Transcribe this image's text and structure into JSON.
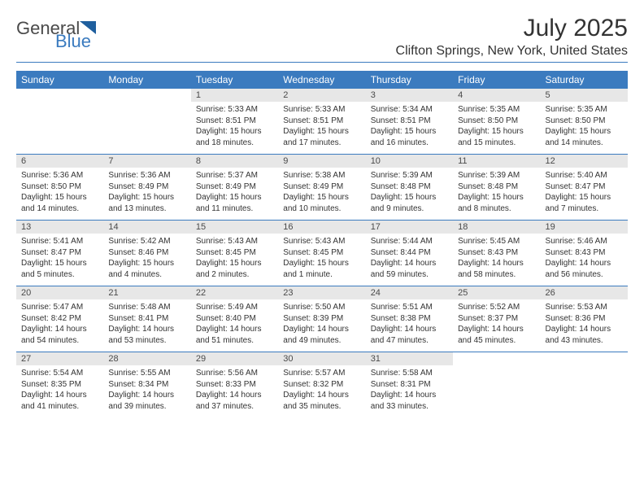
{
  "logo": {
    "general": "General",
    "blue": "Blue"
  },
  "title": "July 2025",
  "location": "Clifton Springs, New York, United States",
  "colors": {
    "header_bg": "#3b7bbf",
    "header_text": "#ffffff",
    "daynum_bg": "#e7e7e7",
    "text": "#333333",
    "rule": "#3b7bbf"
  },
  "days_of_week": [
    "Sunday",
    "Monday",
    "Tuesday",
    "Wednesday",
    "Thursday",
    "Friday",
    "Saturday"
  ],
  "weeks": [
    [
      null,
      null,
      {
        "n": "1",
        "sr": "5:33 AM",
        "ss": "8:51 PM",
        "dl": "15 hours and 18 minutes."
      },
      {
        "n": "2",
        "sr": "5:33 AM",
        "ss": "8:51 PM",
        "dl": "15 hours and 17 minutes."
      },
      {
        "n": "3",
        "sr": "5:34 AM",
        "ss": "8:51 PM",
        "dl": "15 hours and 16 minutes."
      },
      {
        "n": "4",
        "sr": "5:35 AM",
        "ss": "8:50 PM",
        "dl": "15 hours and 15 minutes."
      },
      {
        "n": "5",
        "sr": "5:35 AM",
        "ss": "8:50 PM",
        "dl": "15 hours and 14 minutes."
      }
    ],
    [
      {
        "n": "6",
        "sr": "5:36 AM",
        "ss": "8:50 PM",
        "dl": "15 hours and 14 minutes."
      },
      {
        "n": "7",
        "sr": "5:36 AM",
        "ss": "8:49 PM",
        "dl": "15 hours and 13 minutes."
      },
      {
        "n": "8",
        "sr": "5:37 AM",
        "ss": "8:49 PM",
        "dl": "15 hours and 11 minutes."
      },
      {
        "n": "9",
        "sr": "5:38 AM",
        "ss": "8:49 PM",
        "dl": "15 hours and 10 minutes."
      },
      {
        "n": "10",
        "sr": "5:39 AM",
        "ss": "8:48 PM",
        "dl": "15 hours and 9 minutes."
      },
      {
        "n": "11",
        "sr": "5:39 AM",
        "ss": "8:48 PM",
        "dl": "15 hours and 8 minutes."
      },
      {
        "n": "12",
        "sr": "5:40 AM",
        "ss": "8:47 PM",
        "dl": "15 hours and 7 minutes."
      }
    ],
    [
      {
        "n": "13",
        "sr": "5:41 AM",
        "ss": "8:47 PM",
        "dl": "15 hours and 5 minutes."
      },
      {
        "n": "14",
        "sr": "5:42 AM",
        "ss": "8:46 PM",
        "dl": "15 hours and 4 minutes."
      },
      {
        "n": "15",
        "sr": "5:43 AM",
        "ss": "8:45 PM",
        "dl": "15 hours and 2 minutes."
      },
      {
        "n": "16",
        "sr": "5:43 AM",
        "ss": "8:45 PM",
        "dl": "15 hours and 1 minute."
      },
      {
        "n": "17",
        "sr": "5:44 AM",
        "ss": "8:44 PM",
        "dl": "14 hours and 59 minutes."
      },
      {
        "n": "18",
        "sr": "5:45 AM",
        "ss": "8:43 PM",
        "dl": "14 hours and 58 minutes."
      },
      {
        "n": "19",
        "sr": "5:46 AM",
        "ss": "8:43 PM",
        "dl": "14 hours and 56 minutes."
      }
    ],
    [
      {
        "n": "20",
        "sr": "5:47 AM",
        "ss": "8:42 PM",
        "dl": "14 hours and 54 minutes."
      },
      {
        "n": "21",
        "sr": "5:48 AM",
        "ss": "8:41 PM",
        "dl": "14 hours and 53 minutes."
      },
      {
        "n": "22",
        "sr": "5:49 AM",
        "ss": "8:40 PM",
        "dl": "14 hours and 51 minutes."
      },
      {
        "n": "23",
        "sr": "5:50 AM",
        "ss": "8:39 PM",
        "dl": "14 hours and 49 minutes."
      },
      {
        "n": "24",
        "sr": "5:51 AM",
        "ss": "8:38 PM",
        "dl": "14 hours and 47 minutes."
      },
      {
        "n": "25",
        "sr": "5:52 AM",
        "ss": "8:37 PM",
        "dl": "14 hours and 45 minutes."
      },
      {
        "n": "26",
        "sr": "5:53 AM",
        "ss": "8:36 PM",
        "dl": "14 hours and 43 minutes."
      }
    ],
    [
      {
        "n": "27",
        "sr": "5:54 AM",
        "ss": "8:35 PM",
        "dl": "14 hours and 41 minutes."
      },
      {
        "n": "28",
        "sr": "5:55 AM",
        "ss": "8:34 PM",
        "dl": "14 hours and 39 minutes."
      },
      {
        "n": "29",
        "sr": "5:56 AM",
        "ss": "8:33 PM",
        "dl": "14 hours and 37 minutes."
      },
      {
        "n": "30",
        "sr": "5:57 AM",
        "ss": "8:32 PM",
        "dl": "14 hours and 35 minutes."
      },
      {
        "n": "31",
        "sr": "5:58 AM",
        "ss": "8:31 PM",
        "dl": "14 hours and 33 minutes."
      },
      null,
      null
    ]
  ],
  "labels": {
    "sunrise": "Sunrise:",
    "sunset": "Sunset:",
    "daylight": "Daylight:"
  }
}
